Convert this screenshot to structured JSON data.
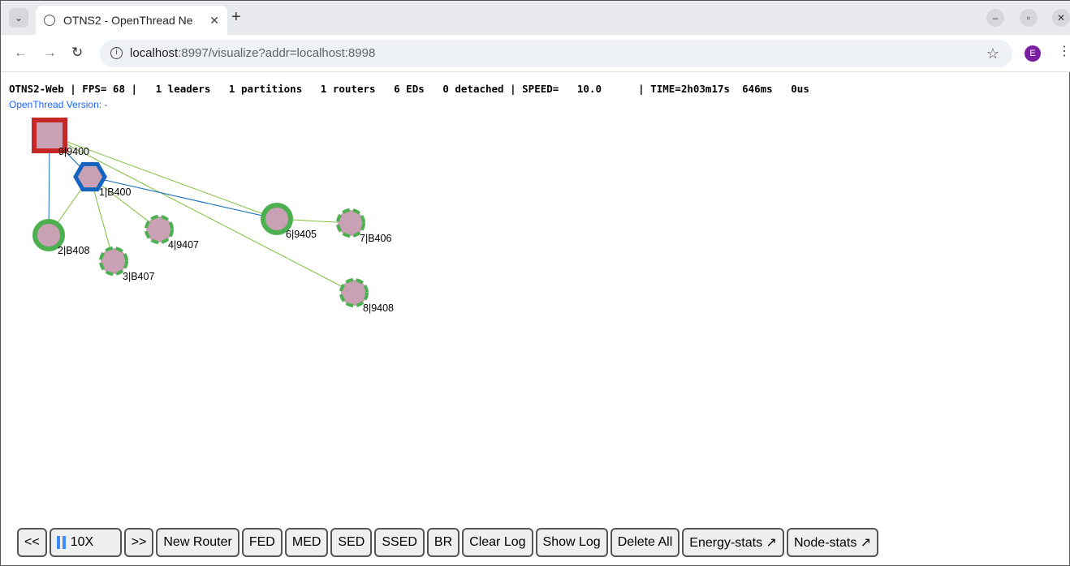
{
  "browser": {
    "tab_title": "OTNS2 - OpenThread Ne",
    "url_host": "localhost",
    "url_rest": ":8997/visualize?addr=localhost:8998",
    "avatar_letter": "E"
  },
  "status": {
    "line": "OTNS2-Web | FPS= 68 |   1 leaders   1 partitions   1 routers   6 EDs   0 detached | SPEED=   10.0      | TIME=2h03m17s  646ms   0us",
    "version": "OpenThread Version: -"
  },
  "network": {
    "colors": {
      "leader": "#c62828",
      "router": "#1565c0",
      "child": "#4caf50",
      "fill": "#c9a0b4",
      "link_parent": "#7cc13a",
      "link_router": "#1e6fd9"
    },
    "nodes": [
      {
        "id": "9",
        "label": "9|9400",
        "shape": "square",
        "role": "leader"
      },
      {
        "id": "1",
        "label": "1|B400",
        "shape": "hexagon",
        "role": "router"
      },
      {
        "id": "2",
        "label": "2|B408",
        "shape": "circle",
        "role": "FED"
      },
      {
        "id": "3",
        "label": "3|B407",
        "shape": "circle",
        "role": "SED"
      },
      {
        "id": "4",
        "label": "4|9407",
        "shape": "circle",
        "role": "SED"
      },
      {
        "id": "6",
        "label": "6|9405",
        "shape": "circle",
        "role": "FED"
      },
      {
        "id": "7",
        "label": "7|B406",
        "shape": "circle",
        "role": "SED"
      },
      {
        "id": "8",
        "label": "8|9408",
        "shape": "circle",
        "role": "SED"
      }
    ]
  },
  "controls": {
    "buttons": [
      "<<",
      "10X",
      ">>",
      "New Router",
      "FED",
      "MED",
      "SED",
      "SSED",
      "BR",
      "Clear Log",
      "Show Log",
      "Delete All",
      "Energy-stats ↗",
      "Node-stats ↗"
    ]
  }
}
